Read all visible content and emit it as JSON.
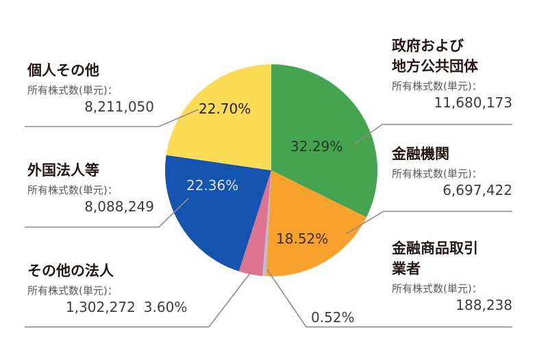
{
  "chart_data": {
    "type": "pie",
    "title": "",
    "start_angle_deg": 0,
    "direction": "clockwise",
    "unit_label": "所有株式数(単元)：",
    "slices": [
      {
        "name": "政府および地方公共団体",
        "name_lines": [
          "政府および",
          "地方公共団体"
        ],
        "shares": "11,680,173",
        "shares_value": 11680173,
        "percent": 32.29,
        "percent_label": "32.29%",
        "color": "#45a44f"
      },
      {
        "name": "金融機関",
        "name_lines": [
          "金融機関"
        ],
        "shares": "6,697,422",
        "shares_value": 6697422,
        "percent": 18.52,
        "percent_label": "18.52%",
        "color": "#f8a22e"
      },
      {
        "name": "金融商品取引業者",
        "name_lines": [
          "金融商品取引",
          "業者"
        ],
        "shares": "188,238",
        "shares_value": 188238,
        "percent": 0.52,
        "percent_label": "0.52%",
        "color": "#b9bede"
      },
      {
        "name": "その他の法人",
        "name_lines": [
          "その他の法人"
        ],
        "shares": "1,302,272",
        "shares_value": 1302272,
        "percent": 3.6,
        "percent_label": "3.60%",
        "color": "#de7390"
      },
      {
        "name": "外国法人等",
        "name_lines": [
          "外国法人等"
        ],
        "shares": "8,088,249",
        "shares_value": 8088249,
        "percent": 22.36,
        "percent_label": "22.36%",
        "color": "#1553b0"
      },
      {
        "name": "個人その他",
        "name_lines": [
          "個人その他"
        ],
        "shares": "8,211,050",
        "shares_value": 8211050,
        "percent": 22.7,
        "percent_label": "22.70%",
        "color": "#fddc55"
      }
    ],
    "legend_position": "callouts",
    "grid": false
  },
  "labels": {
    "gov": {
      "line1": "政府および",
      "line2": "地方公共団体",
      "unit": "所有株式数(単元)：",
      "shares": "11,680,173",
      "pct": "32.29%"
    },
    "financial": {
      "line1": "金融機関",
      "unit": "所有株式数(単元)：",
      "shares": "6,697,422",
      "pct": "18.52%"
    },
    "securities": {
      "line1": "金融商品取引",
      "line2": "業者",
      "unit": "所有株式数(単元)：",
      "shares": "188,238",
      "pct": "0.52%"
    },
    "other_corp": {
      "line1": "その他の法人",
      "unit": "所有株式数(単元)：",
      "shares": "1,302,272",
      "pct": "3.60%"
    },
    "foreign": {
      "line1": "外国法人等",
      "unit": "所有株式数(単元)：",
      "shares": "8,088,249",
      "pct": "22.36%"
    },
    "individual": {
      "line1": "個人その他",
      "unit": "所有株式数(単元)：",
      "shares": "8,211,050",
      "pct": "22.70%"
    }
  },
  "colors": {
    "leader_line": "#8c8c8c",
    "pct_dark": "#231815",
    "pct_light": "#dce6f5"
  }
}
